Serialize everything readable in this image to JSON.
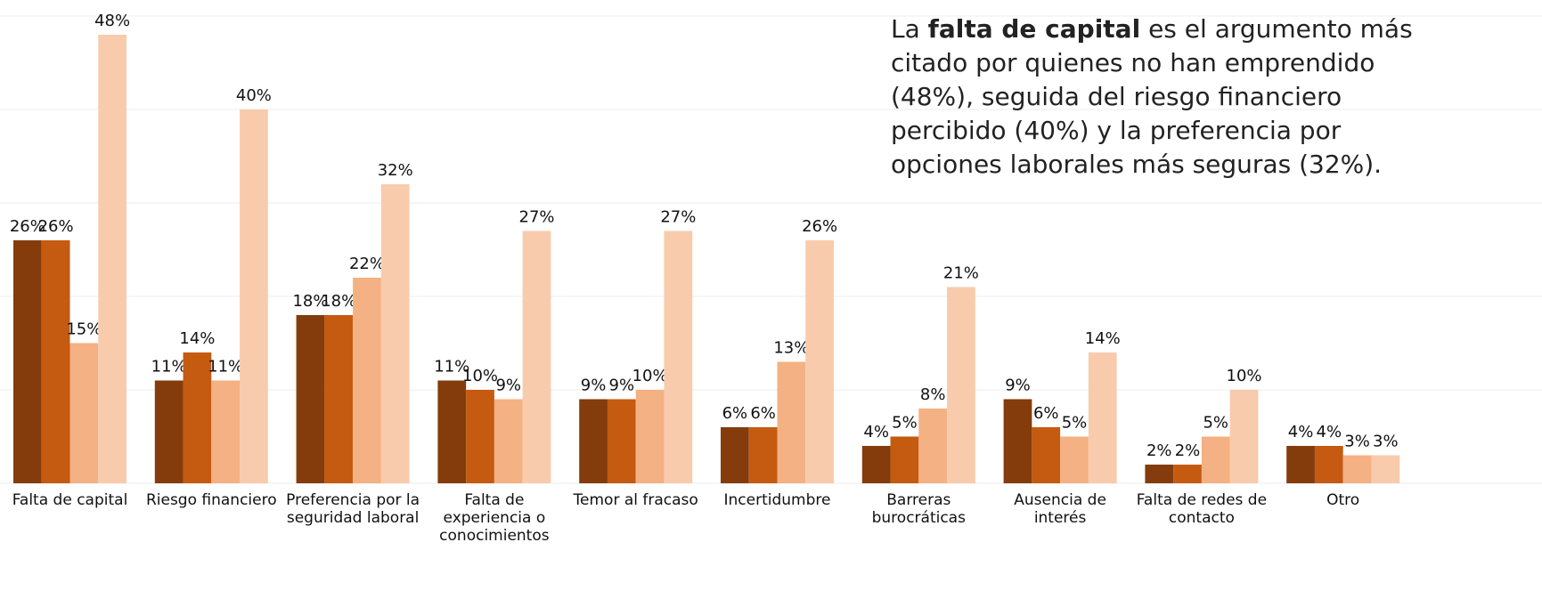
{
  "chart_data": {
    "type": "bar",
    "annotation": {
      "before": "La ",
      "bold": "falta de capital",
      "after": " es el argumento más citado por quienes no han emprendido (48%), seguida del riesgo financiero percibido (40%) y la preferencia por opciones laborales más seguras (32%)."
    },
    "categories": [
      "Falta de capital",
      "Riesgo financiero",
      "Preferencia por la seguridad laboral",
      "Falta de experiencia o conocimientos",
      "Temor al fracaso",
      "Incertidumbre",
      "Barreras burocráticas",
      "Ausencia de interés",
      "Falta de redes de contacto",
      "Otro"
    ],
    "series": [
      {
        "color": "#843c0c",
        "values": [
          26,
          11,
          18,
          11,
          9,
          6,
          4,
          9,
          2,
          4
        ],
        "value_labels": [
          "26%",
          "11%",
          "18%",
          "11%",
          "9%",
          "6%",
          "4%",
          "9%",
          "2%",
          "4%"
        ]
      },
      {
        "color": "#c55a11",
        "values": [
          26,
          14,
          18,
          10,
          9,
          6,
          5,
          6,
          2,
          4
        ],
        "value_labels": [
          "26%",
          "14%",
          "18%",
          "10%",
          "9%",
          "6%",
          "5%",
          "6%",
          "2%",
          "4%"
        ]
      },
      {
        "color": "#f4b183",
        "values": [
          15,
          11,
          22,
          9,
          10,
          13,
          8,
          5,
          5,
          3
        ],
        "value_labels": [
          "15%",
          "11%",
          "22%",
          "9%",
          "10%",
          "13%",
          "8%",
          "5%",
          "5%",
          "3%"
        ]
      },
      {
        "color": "#f8cbad",
        "values": [
          48,
          40,
          32,
          27,
          27,
          26,
          21,
          14,
          10,
          3
        ],
        "value_labels": [
          "48%",
          "40%",
          "32%",
          "27%",
          "27%",
          "26%",
          "21%",
          "14%",
          "10%",
          "3%"
        ]
      }
    ],
    "ylim": [
      0,
      50
    ],
    "yticks": [
      0,
      10,
      20,
      30,
      40,
      50
    ],
    "grid": true
  }
}
